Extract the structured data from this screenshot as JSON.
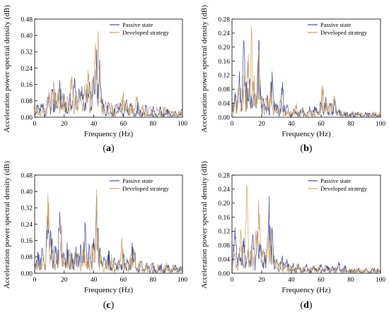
{
  "chart_data": [
    {
      "type": "line",
      "panel_label": "a",
      "xlabel": "Frequency (Hz)",
      "ylabel": "Acceleration power spectral density (dB)",
      "xlim": [
        0,
        100
      ],
      "ylim": [
        0,
        0.48
      ],
      "x_ticks": [
        0,
        20,
        40,
        60,
        80,
        100
      ],
      "y_ticks": [
        "0.00",
        "0.08",
        "0.16",
        "0.24",
        "0.32",
        "0.40",
        "0.48"
      ],
      "legend_position": "top-right",
      "grid": false,
      "series": [
        {
          "name": "Passive state",
          "color": "#3b4a9a",
          "peaks": [
            [
              2,
              0.05
            ],
            [
              5,
              0.06
            ],
            [
              9,
              0.1
            ],
            [
              12,
              0.13
            ],
            [
              14,
              0.12
            ],
            [
              17,
              0.18
            ],
            [
              20,
              0.1
            ],
            [
              24,
              0.11
            ],
            [
              27,
              0.19
            ],
            [
              30,
              0.14
            ],
            [
              32,
              0.15
            ],
            [
              35,
              0.13
            ],
            [
              37,
              0.17
            ],
            [
              40,
              0.2
            ],
            [
              42,
              0.33
            ],
            [
              44,
              0.28
            ],
            [
              46,
              0.09
            ],
            [
              50,
              0.07
            ],
            [
              55,
              0.06
            ],
            [
              58,
              0.07
            ],
            [
              62,
              0.08
            ],
            [
              65,
              0.07
            ],
            [
              70,
              0.07
            ],
            [
              75,
              0.06
            ],
            [
              80,
              0.05
            ],
            [
              85,
              0.04
            ],
            [
              90,
              0.04
            ],
            [
              95,
              0.03
            ],
            [
              99,
              0.03
            ]
          ]
        },
        {
          "name": "Developed strategy",
          "color": "#c9a05e",
          "peaks": [
            [
              2,
              0.04
            ],
            [
              6,
              0.05
            ],
            [
              10,
              0.12
            ],
            [
              13,
              0.17
            ],
            [
              16,
              0.14
            ],
            [
              19,
              0.12
            ],
            [
              22,
              0.1
            ],
            [
              25,
              0.2
            ],
            [
              28,
              0.13
            ],
            [
              31,
              0.12
            ],
            [
              34,
              0.16
            ],
            [
              36,
              0.23
            ],
            [
              39,
              0.18
            ],
            [
              41,
              0.36
            ],
            [
              43,
              0.42
            ],
            [
              45,
              0.1
            ],
            [
              48,
              0.08
            ],
            [
              52,
              0.06
            ],
            [
              57,
              0.07
            ],
            [
              60,
              0.13
            ],
            [
              63,
              0.06
            ],
            [
              66,
              0.06
            ],
            [
              69,
              0.1
            ],
            [
              73,
              0.05
            ],
            [
              78,
              0.05
            ],
            [
              83,
              0.04
            ],
            [
              88,
              0.05
            ],
            [
              93,
              0.03
            ],
            [
              98,
              0.03
            ]
          ]
        }
      ]
    },
    {
      "type": "line",
      "panel_label": "b",
      "xlabel": "Frequency (Hz)",
      "ylabel": "Acceleration power spectral density (dB)",
      "xlim": [
        0,
        100
      ],
      "ylim": [
        0,
        0.28
      ],
      "x_ticks": [
        0,
        20,
        40,
        60,
        80,
        100
      ],
      "y_ticks": [
        "0.00",
        "0.04",
        "0.08",
        "0.12",
        "0.16",
        "0.20",
        "0.24",
        "0.28"
      ],
      "legend_position": "top-right",
      "grid": false,
      "series": [
        {
          "name": "Passive state",
          "color": "#3b4a9a",
          "peaks": [
            [
              2,
              0.07
            ],
            [
              5,
              0.13
            ],
            [
              8,
              0.22
            ],
            [
              10,
              0.1
            ],
            [
              12,
              0.11
            ],
            [
              15,
              0.08
            ],
            [
              18,
              0.22
            ],
            [
              21,
              0.05
            ],
            [
              24,
              0.06
            ],
            [
              27,
              0.13
            ],
            [
              30,
              0.04
            ],
            [
              34,
              0.1
            ],
            [
              37,
              0.03
            ],
            [
              42,
              0.02
            ],
            [
              47,
              0.02
            ],
            [
              52,
              0.02
            ],
            [
              56,
              0.03
            ],
            [
              60,
              0.04
            ],
            [
              63,
              0.05
            ],
            [
              66,
              0.04
            ],
            [
              69,
              0.05
            ],
            [
              72,
              0.02
            ],
            [
              76,
              0.01
            ],
            [
              80,
              0.01
            ],
            [
              85,
              0.01
            ],
            [
              90,
              0.01
            ],
            [
              95,
              0.01
            ],
            [
              99,
              0.005
            ]
          ]
        },
        {
          "name": "Developed strategy",
          "color": "#c9a05e",
          "peaks": [
            [
              2,
              0.05
            ],
            [
              5,
              0.09
            ],
            [
              8,
              0.12
            ],
            [
              11,
              0.18
            ],
            [
              13,
              0.26
            ],
            [
              15,
              0.12
            ],
            [
              18,
              0.19
            ],
            [
              20,
              0.06
            ],
            [
              23,
              0.05
            ],
            [
              26,
              0.1
            ],
            [
              29,
              0.03
            ],
            [
              33,
              0.06
            ],
            [
              38,
              0.02
            ],
            [
              43,
              0.03
            ],
            [
              48,
              0.02
            ],
            [
              53,
              0.02
            ],
            [
              57,
              0.02
            ],
            [
              61,
              0.09
            ],
            [
              64,
              0.04
            ],
            [
              67,
              0.04
            ],
            [
              69,
              0.06
            ],
            [
              72,
              0.015
            ],
            [
              76,
              0.01
            ],
            [
              81,
              0.01
            ],
            [
              86,
              0.01
            ],
            [
              91,
              0.01
            ],
            [
              96,
              0.008
            ],
            [
              99,
              0.005
            ]
          ]
        }
      ]
    },
    {
      "type": "line",
      "panel_label": "c",
      "xlabel": "Frequency (Hz)",
      "ylabel": "Acceleration power spectral density (dB)",
      "xlim": [
        0,
        100
      ],
      "ylim": [
        0,
        0.48
      ],
      "x_ticks": [
        0,
        20,
        40,
        60,
        80,
        100
      ],
      "y_ticks": [
        "0.00",
        "0.08",
        "0.16",
        "0.24",
        "0.32",
        "0.40",
        "0.48"
      ],
      "legend_position": "top-right",
      "grid": false,
      "series": [
        {
          "name": "Passive state",
          "color": "#3b4a9a",
          "peaks": [
            [
              2,
              0.1
            ],
            [
              5,
              0.12
            ],
            [
              9,
              0.3
            ],
            [
              11,
              0.2
            ],
            [
              14,
              0.13
            ],
            [
              17,
              0.3
            ],
            [
              20,
              0.09
            ],
            [
              22,
              0.15
            ],
            [
              25,
              0.1
            ],
            [
              28,
              0.13
            ],
            [
              31,
              0.14
            ],
            [
              34,
              0.25
            ],
            [
              37,
              0.13
            ],
            [
              40,
              0.17
            ],
            [
              42,
              0.38
            ],
            [
              44,
              0.12
            ],
            [
              47,
              0.08
            ],
            [
              50,
              0.11
            ],
            [
              54,
              0.07
            ],
            [
              57,
              0.06
            ],
            [
              60,
              0.1
            ],
            [
              63,
              0.06
            ],
            [
              66,
              0.15
            ],
            [
              68,
              0.1
            ],
            [
              72,
              0.06
            ],
            [
              76,
              0.05
            ],
            [
              80,
              0.05
            ],
            [
              85,
              0.04
            ],
            [
              90,
              0.04
            ],
            [
              95,
              0.04
            ],
            [
              99,
              0.03
            ]
          ]
        },
        {
          "name": "Developed strategy",
          "color": "#c9a05e",
          "peaks": [
            [
              2,
              0.06
            ],
            [
              6,
              0.08
            ],
            [
              9,
              0.39
            ],
            [
              12,
              0.17
            ],
            [
              15,
              0.1
            ],
            [
              18,
              0.23
            ],
            [
              21,
              0.08
            ],
            [
              24,
              0.12
            ],
            [
              27,
              0.09
            ],
            [
              30,
              0.1
            ],
            [
              33,
              0.16
            ],
            [
              36,
              0.1
            ],
            [
              39,
              0.14
            ],
            [
              42,
              0.41
            ],
            [
              45,
              0.08
            ],
            [
              49,
              0.06
            ],
            [
              52,
              0.09
            ],
            [
              56,
              0.05
            ],
            [
              59,
              0.17
            ],
            [
              62,
              0.05
            ],
            [
              65,
              0.09
            ],
            [
              67,
              0.12
            ],
            [
              71,
              0.05
            ],
            [
              75,
              0.04
            ],
            [
              79,
              0.05
            ],
            [
              84,
              0.04
            ],
            [
              89,
              0.05
            ],
            [
              94,
              0.04
            ],
            [
              98,
              0.03
            ]
          ]
        }
      ]
    },
    {
      "type": "line",
      "panel_label": "d",
      "xlabel": "Frequency (Hz)",
      "ylabel": "Acceleration power spectral density (dB)",
      "xlim": [
        0,
        100
      ],
      "ylim": [
        0,
        0.28
      ],
      "x_ticks": [
        0,
        20,
        40,
        60,
        80,
        100
      ],
      "y_ticks": [
        "0.00",
        "0.04",
        "0.08",
        "0.12",
        "0.16",
        "0.20",
        "0.24",
        "0.28"
      ],
      "legend_position": "top-right",
      "grid": false,
      "series": [
        {
          "name": "Passive state",
          "color": "#3b4a9a",
          "peaks": [
            [
              2,
              0.13
            ],
            [
              5,
              0.06
            ],
            [
              8,
              0.1
            ],
            [
              11,
              0.07
            ],
            [
              14,
              0.11
            ],
            [
              17,
              0.12
            ],
            [
              19,
              0.09
            ],
            [
              22,
              0.06
            ],
            [
              25,
              0.22
            ],
            [
              27,
              0.13
            ],
            [
              30,
              0.04
            ],
            [
              34,
              0.05
            ],
            [
              37,
              0.04
            ],
            [
              41,
              0.02
            ],
            [
              45,
              0.02
            ],
            [
              50,
              0.02
            ],
            [
              55,
              0.02
            ],
            [
              60,
              0.025
            ],
            [
              64,
              0.02
            ],
            [
              68,
              0.02
            ],
            [
              72,
              0.03
            ],
            [
              76,
              0.015
            ],
            [
              80,
              0.01
            ],
            [
              85,
              0.01
            ],
            [
              90,
              0.01
            ],
            [
              95,
              0.01
            ],
            [
              99,
              0.005
            ]
          ]
        },
        {
          "name": "Developed strategy",
          "color": "#c9a05e",
          "peaks": [
            [
              2,
              0.06
            ],
            [
              6,
              0.12
            ],
            [
              10,
              0.25
            ],
            [
              13,
              0.08
            ],
            [
              16,
              0.12
            ],
            [
              18,
              0.21
            ],
            [
              21,
              0.07
            ],
            [
              24,
              0.1
            ],
            [
              26,
              0.13
            ],
            [
              29,
              0.04
            ],
            [
              32,
              0.03
            ],
            [
              36,
              0.03
            ],
            [
              40,
              0.02
            ],
            [
              44,
              0.02
            ],
            [
              49,
              0.015
            ],
            [
              54,
              0.015
            ],
            [
              59,
              0.02
            ],
            [
              63,
              0.02
            ],
            [
              67,
              0.015
            ],
            [
              71,
              0.02
            ],
            [
              75,
              0.01
            ],
            [
              80,
              0.01
            ],
            [
              86,
              0.01
            ],
            [
              91,
              0.008
            ],
            [
              96,
              0.008
            ],
            [
              99,
              0.005
            ]
          ]
        }
      ]
    }
  ]
}
